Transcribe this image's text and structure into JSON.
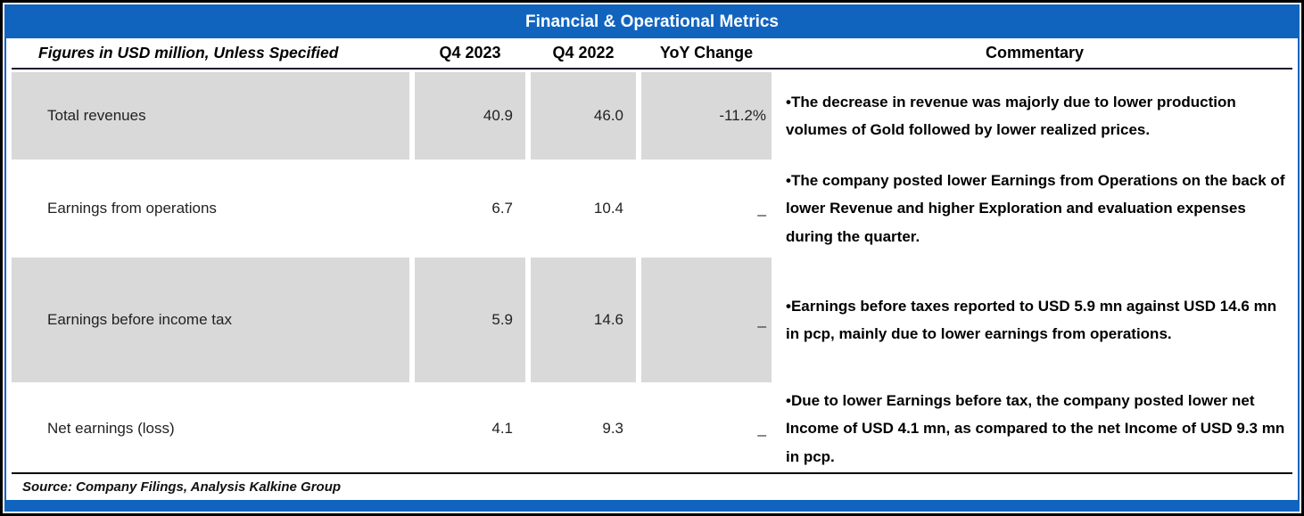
{
  "title": "Financial & Operational Metrics",
  "columns": {
    "metric": "Figures in USD million, Unless Specified",
    "q4_2023": "Q4 2023",
    "q4_2022": "Q4 2022",
    "yoy": "YoY Change",
    "commentary": "Commentary"
  },
  "rows": [
    {
      "metric": "Total revenues",
      "q4_2023": "40.9",
      "q4_2022": "46.0",
      "yoy": "-11.2%",
      "commentary": "•The decrease in revenue was majorly due to lower production volumes of Gold followed by lower realized prices."
    },
    {
      "metric": "Earnings from operations",
      "q4_2023": "6.7",
      "q4_2022": "10.4",
      "yoy": "_",
      "commentary": "•The company posted lower Earnings from Operations on the back of lower Revenue and higher Exploration and evaluation expenses during the quarter."
    },
    {
      "metric": "Earnings before income tax",
      "q4_2023": "5.9",
      "q4_2022": "14.6",
      "yoy": "_",
      "commentary": "•Earnings before taxes reported to USD 5.9 mn against USD 14.6 mn in pcp, mainly due to lower earnings from operations."
    },
    {
      "metric": "Net earnings (loss)",
      "q4_2023": "4.1",
      "q4_2022": "9.3",
      "yoy": "_",
      "commentary": "•Due to lower Earnings before tax, the company posted lower net Income of USD 4.1 mn, as compared to the net Income of USD 9.3 mn in pcp."
    }
  ],
  "source": "Source: Company Filings, Analysis Kalkine Group",
  "colors": {
    "header_blue": "#1164be",
    "row_gray": "#d9d9d9",
    "border_black": "#000000"
  }
}
